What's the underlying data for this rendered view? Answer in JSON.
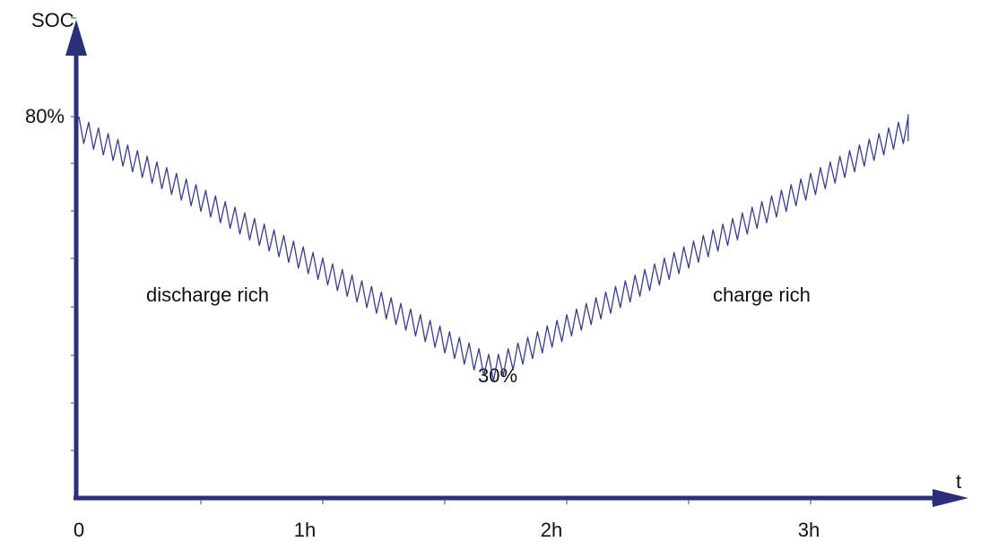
{
  "chart_data": {
    "type": "line",
    "xlabel": "t",
    "ylabel": "SOC",
    "x_tick_labels": [
      "0",
      "1h",
      "2h",
      "3h"
    ],
    "x_tick_values_h": [
      0,
      1,
      2,
      3
    ],
    "xlim_h": [
      0,
      3.4
    ],
    "ylim_pct": [
      0,
      100
    ],
    "y_labeled_ticks": [
      {
        "value": 80,
        "label": "80%"
      }
    ],
    "annotations": [
      {
        "text": "discharge rich",
        "region": "left"
      },
      {
        "text": "charge rich",
        "region": "right"
      },
      {
        "text": "30%",
        "region": "minimum"
      }
    ],
    "series": [
      {
        "color": "#3a3d8a",
        "key_points": [
          {
            "t_h": 0.0,
            "soc_pct": 80
          },
          {
            "t_h": 1.7,
            "soc_pct": 30
          },
          {
            "t_h": 3.4,
            "soc_pct": 80
          }
        ],
        "oscillation_amplitude_pct": 5,
        "oscillation_period_h": 0.04,
        "note_values": "sawtooth superimposed on V-shaped trend"
      }
    ],
    "grid": false,
    "legend": "none"
  }
}
